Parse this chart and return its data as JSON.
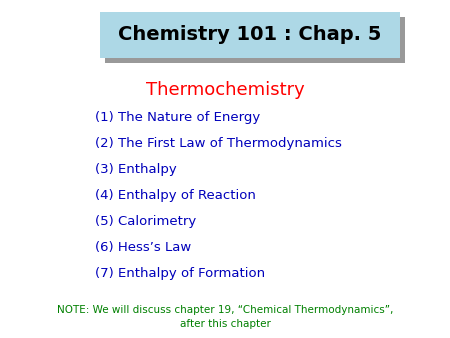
{
  "title": "Chemistry 101 : Chap. 5",
  "title_color": "#000000",
  "title_bg_color": "#add8e6",
  "title_shadow_color": "#999999",
  "subtitle": "Thermochemistry",
  "subtitle_color": "#ff0000",
  "items": [
    "(1) The Nature of Energy",
    "(2) The First Law of Thermodynamics",
    "(3) Enthalpy",
    "(4) Enthalpy of Reaction",
    "(5) Calorimetry",
    "(6) Hess’s Law",
    "(7) Enthalpy of Formation"
  ],
  "items_color": "#0000bb",
  "note_line1": "NOTE: We will discuss chapter 19, “Chemical Thermodynamics”,",
  "note_line2": "after this chapter",
  "note_color": "#008000",
  "bg_color": "#ffffff",
  "fig_width": 4.5,
  "fig_height": 3.38,
  "dpi": 100
}
